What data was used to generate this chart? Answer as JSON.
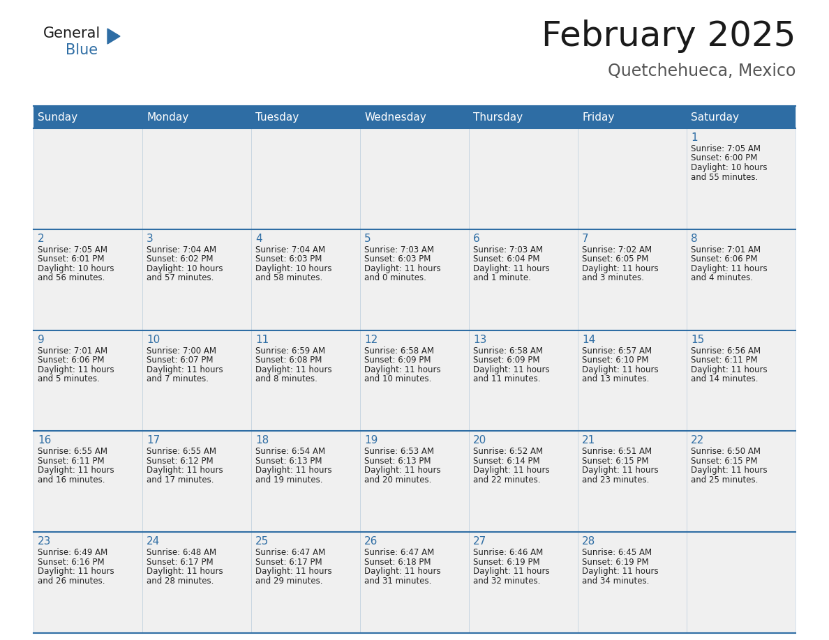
{
  "title": "February 2025",
  "subtitle": "Quetchehueca, Mexico",
  "days_of_week": [
    "Sunday",
    "Monday",
    "Tuesday",
    "Wednesday",
    "Thursday",
    "Friday",
    "Saturday"
  ],
  "header_bg_color": "#2E6DA4",
  "header_text_color": "#FFFFFF",
  "cell_bg_color": "#f0f0f0",
  "cell_bg_color_alt": "#ffffff",
  "grid_line_color": "#2E6DA4",
  "day_number_color": "#2E6DA4",
  "cell_text_color": "#222222",
  "background_color": "#FFFFFF",
  "title_color": "#1a1a1a",
  "subtitle_color": "#555555",
  "logo_general_color": "#1a1a1a",
  "logo_blue_color": "#2E6DA4",
  "weeks": [
    [
      null,
      null,
      null,
      null,
      null,
      null,
      1
    ],
    [
      2,
      3,
      4,
      5,
      6,
      7,
      8
    ],
    [
      9,
      10,
      11,
      12,
      13,
      14,
      15
    ],
    [
      16,
      17,
      18,
      19,
      20,
      21,
      22
    ],
    [
      23,
      24,
      25,
      26,
      27,
      28,
      null
    ]
  ],
  "cell_data": {
    "1": {
      "sunrise": "7:05 AM",
      "sunset": "6:00 PM",
      "daylight_l1": "10 hours",
      "daylight_l2": "and 55 minutes."
    },
    "2": {
      "sunrise": "7:05 AM",
      "sunset": "6:01 PM",
      "daylight_l1": "10 hours",
      "daylight_l2": "and 56 minutes."
    },
    "3": {
      "sunrise": "7:04 AM",
      "sunset": "6:02 PM",
      "daylight_l1": "10 hours",
      "daylight_l2": "and 57 minutes."
    },
    "4": {
      "sunrise": "7:04 AM",
      "sunset": "6:03 PM",
      "daylight_l1": "10 hours",
      "daylight_l2": "and 58 minutes."
    },
    "5": {
      "sunrise": "7:03 AM",
      "sunset": "6:03 PM",
      "daylight_l1": "11 hours",
      "daylight_l2": "and 0 minutes."
    },
    "6": {
      "sunrise": "7:03 AM",
      "sunset": "6:04 PM",
      "daylight_l1": "11 hours",
      "daylight_l2": "and 1 minute."
    },
    "7": {
      "sunrise": "7:02 AM",
      "sunset": "6:05 PM",
      "daylight_l1": "11 hours",
      "daylight_l2": "and 3 minutes."
    },
    "8": {
      "sunrise": "7:01 AM",
      "sunset": "6:06 PM",
      "daylight_l1": "11 hours",
      "daylight_l2": "and 4 minutes."
    },
    "9": {
      "sunrise": "7:01 AM",
      "sunset": "6:06 PM",
      "daylight_l1": "11 hours",
      "daylight_l2": "and 5 minutes."
    },
    "10": {
      "sunrise": "7:00 AM",
      "sunset": "6:07 PM",
      "daylight_l1": "11 hours",
      "daylight_l2": "and 7 minutes."
    },
    "11": {
      "sunrise": "6:59 AM",
      "sunset": "6:08 PM",
      "daylight_l1": "11 hours",
      "daylight_l2": "and 8 minutes."
    },
    "12": {
      "sunrise": "6:58 AM",
      "sunset": "6:09 PM",
      "daylight_l1": "11 hours",
      "daylight_l2": "and 10 minutes."
    },
    "13": {
      "sunrise": "6:58 AM",
      "sunset": "6:09 PM",
      "daylight_l1": "11 hours",
      "daylight_l2": "and 11 minutes."
    },
    "14": {
      "sunrise": "6:57 AM",
      "sunset": "6:10 PM",
      "daylight_l1": "11 hours",
      "daylight_l2": "and 13 minutes."
    },
    "15": {
      "sunrise": "6:56 AM",
      "sunset": "6:11 PM",
      "daylight_l1": "11 hours",
      "daylight_l2": "and 14 minutes."
    },
    "16": {
      "sunrise": "6:55 AM",
      "sunset": "6:11 PM",
      "daylight_l1": "11 hours",
      "daylight_l2": "and 16 minutes."
    },
    "17": {
      "sunrise": "6:55 AM",
      "sunset": "6:12 PM",
      "daylight_l1": "11 hours",
      "daylight_l2": "and 17 minutes."
    },
    "18": {
      "sunrise": "6:54 AM",
      "sunset": "6:13 PM",
      "daylight_l1": "11 hours",
      "daylight_l2": "and 19 minutes."
    },
    "19": {
      "sunrise": "6:53 AM",
      "sunset": "6:13 PM",
      "daylight_l1": "11 hours",
      "daylight_l2": "and 20 minutes."
    },
    "20": {
      "sunrise": "6:52 AM",
      "sunset": "6:14 PM",
      "daylight_l1": "11 hours",
      "daylight_l2": "and 22 minutes."
    },
    "21": {
      "sunrise": "6:51 AM",
      "sunset": "6:15 PM",
      "daylight_l1": "11 hours",
      "daylight_l2": "and 23 minutes."
    },
    "22": {
      "sunrise": "6:50 AM",
      "sunset": "6:15 PM",
      "daylight_l1": "11 hours",
      "daylight_l2": "and 25 minutes."
    },
    "23": {
      "sunrise": "6:49 AM",
      "sunset": "6:16 PM",
      "daylight_l1": "11 hours",
      "daylight_l2": "and 26 minutes."
    },
    "24": {
      "sunrise": "6:48 AM",
      "sunset": "6:17 PM",
      "daylight_l1": "11 hours",
      "daylight_l2": "and 28 minutes."
    },
    "25": {
      "sunrise": "6:47 AM",
      "sunset": "6:17 PM",
      "daylight_l1": "11 hours",
      "daylight_l2": "and 29 minutes."
    },
    "26": {
      "sunrise": "6:47 AM",
      "sunset": "6:18 PM",
      "daylight_l1": "11 hours",
      "daylight_l2": "and 31 minutes."
    },
    "27": {
      "sunrise": "6:46 AM",
      "sunset": "6:19 PM",
      "daylight_l1": "11 hours",
      "daylight_l2": "and 32 minutes."
    },
    "28": {
      "sunrise": "6:45 AM",
      "sunset": "6:19 PM",
      "daylight_l1": "11 hours",
      "daylight_l2": "and 34 minutes."
    }
  }
}
